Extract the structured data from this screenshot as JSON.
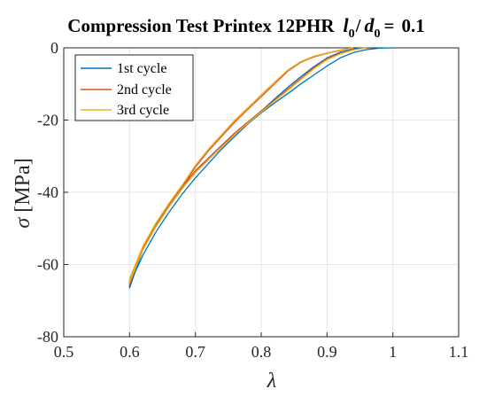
{
  "chart_data": {
    "type": "line",
    "title": {
      "main": "Compression Test Printex 12PHR",
      "ratio_l": "l",
      "ratio_l_sub": "0",
      "ratio_slash": "/",
      "ratio_d": "d",
      "ratio_d_sub": "0",
      "ratio_eq": "=",
      "ratio_value": "0.1"
    },
    "xlabel": "λ",
    "ylabel_symbol": "σ",
    "ylabel_unit": "[MPa]",
    "xlim": [
      0.5,
      1.1
    ],
    "ylim": [
      -80,
      0
    ],
    "xticks": [
      0.5,
      0.6,
      0.7,
      0.8,
      0.9,
      1.0,
      1.1
    ],
    "xtick_labels": [
      "0.5",
      "0.6",
      "0.7",
      "0.8",
      "0.9",
      "1",
      "1.1"
    ],
    "yticks": [
      0,
      -20,
      -40,
      -60,
      -80
    ],
    "ytick_labels": [
      "0",
      "-20",
      "-40",
      "-60",
      "-80"
    ],
    "grid": true,
    "legend_position": "top-left",
    "series": [
      {
        "name": "1st cycle",
        "color": "#0072BD",
        "x": [
          1.0,
          0.98,
          0.96,
          0.94,
          0.92,
          0.9,
          0.88,
          0.86,
          0.84,
          0.82,
          0.8,
          0.78,
          0.76,
          0.74,
          0.72,
          0.7,
          0.68,
          0.66,
          0.64,
          0.62,
          0.6,
          0.6,
          0.62,
          0.64,
          0.66,
          0.68,
          0.7,
          0.72,
          0.74,
          0.76,
          0.78,
          0.8,
          0.82,
          0.84,
          0.86,
          0.88,
          0.9,
          0.92,
          0.94,
          0.96
        ],
        "y": [
          0,
          -0.1,
          -0.5,
          -1.3,
          -2.8,
          -5.0,
          -7.5,
          -10.0,
          -12.7,
          -15.3,
          -18.0,
          -21.0,
          -24.0,
          -27.0,
          -30.5,
          -34.5,
          -39.0,
          -44.0,
          -49.5,
          -56.0,
          -66.5,
          -65.5,
          -57.5,
          -51.0,
          -45.5,
          -40.5,
          -36.0,
          -32.0,
          -28.0,
          -24.5,
          -21.0,
          -17.5,
          -14.2,
          -11.0,
          -8.0,
          -5.2,
          -2.8,
          -1.2,
          -0.3,
          0
        ]
      },
      {
        "name": "2nd cycle",
        "color": "#D95319",
        "x": [
          0.96,
          0.94,
          0.92,
          0.9,
          0.88,
          0.86,
          0.84,
          0.82,
          0.8,
          0.78,
          0.76,
          0.74,
          0.72,
          0.7,
          0.68,
          0.66,
          0.64,
          0.62,
          0.6,
          0.6,
          0.62,
          0.64,
          0.66,
          0.68,
          0.7,
          0.72,
          0.74,
          0.76,
          0.78,
          0.8,
          0.82,
          0.84,
          0.86,
          0.88,
          0.9,
          0.92,
          0.94
        ],
        "y": [
          0,
          -0.5,
          -1.5,
          -3.0,
          -5.5,
          -8.5,
          -11.5,
          -14.5,
          -17.5,
          -20.5,
          -23.5,
          -27.0,
          -30.5,
          -34.0,
          -38.5,
          -43.5,
          -49.0,
          -55.5,
          -65.5,
          -64.5,
          -55.5,
          -49.0,
          -43.5,
          -38.5,
          -33.0,
          -28.5,
          -24.5,
          -20.5,
          -17.0,
          -13.5,
          -10.0,
          -6.5,
          -4.0,
          -2.5,
          -1.5,
          -0.7,
          0
        ]
      },
      {
        "name": "3rd cycle",
        "color": "#EDB120",
        "x": [
          0.96,
          0.94,
          0.92,
          0.9,
          0.88,
          0.86,
          0.84,
          0.82,
          0.8,
          0.78,
          0.76,
          0.74,
          0.72,
          0.7,
          0.68,
          0.66,
          0.64,
          0.62,
          0.6,
          0.6,
          0.62,
          0.64,
          0.66,
          0.68,
          0.7,
          0.72,
          0.74,
          0.76,
          0.78,
          0.8,
          0.82,
          0.84,
          0.86,
          0.88,
          0.9,
          0.92,
          0.94
        ],
        "y": [
          0,
          -0.6,
          -1.7,
          -3.3,
          -5.8,
          -8.8,
          -11.8,
          -14.8,
          -17.8,
          -20.8,
          -24.0,
          -27.5,
          -31.0,
          -34.5,
          -39.0,
          -44.0,
          -49.5,
          -56.0,
          -65.0,
          -64.0,
          -55.0,
          -48.5,
          -43.0,
          -38.0,
          -32.5,
          -28.0,
          -24.0,
          -20.0,
          -16.5,
          -13.0,
          -9.5,
          -6.2,
          -3.8,
          -2.3,
          -1.4,
          -0.6,
          0
        ]
      }
    ]
  }
}
